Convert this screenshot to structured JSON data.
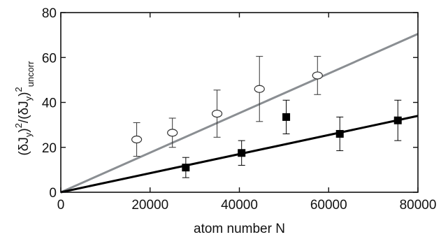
{
  "chart_data": {
    "type": "scatter",
    "xlabel": "atom number N",
    "ylabel": {
      "part1": "(δJ",
      "part2": "y",
      "part3": ")",
      "part4": "2",
      "part5": "/(δJ",
      "part6": "y",
      "part7": ")",
      "part8": "2",
      "part9": "uncorr"
    },
    "xlim": [
      0,
      80000
    ],
    "ylim": [
      0,
      80
    ],
    "x_ticks": [
      0,
      20000,
      40000,
      60000,
      80000
    ],
    "x_tick_labels": [
      "0",
      "20000",
      "40000",
      "60000",
      "80000"
    ],
    "y_ticks": [
      0,
      20,
      40,
      60,
      80
    ],
    "y_tick_labels": [
      "0",
      "20",
      "40",
      "60",
      "80"
    ],
    "grid": false,
    "series": [
      {
        "marker": "open-circle",
        "color": "#333333",
        "points": [
          {
            "x": 17000,
            "y": 23.5,
            "err": 7.5
          },
          {
            "x": 25000,
            "y": 26.5,
            "err": 6.5
          },
          {
            "x": 35000,
            "y": 35,
            "err": 10.5
          },
          {
            "x": 44500,
            "y": 46,
            "err": 14.5
          },
          {
            "x": 57500,
            "y": 52,
            "err": 8.5
          }
        ]
      },
      {
        "marker": "filled-square",
        "color": "#000000",
        "points": [
          {
            "x": 28000,
            "y": 11,
            "err": 4.5
          },
          {
            "x": 40500,
            "y": 17.5,
            "err": 5.5
          },
          {
            "x": 50500,
            "y": 33.5,
            "err": 7.5
          },
          {
            "x": 62500,
            "y": 26,
            "err": 7.5
          },
          {
            "x": 75500,
            "y": 32,
            "err": 9
          }
        ]
      }
    ],
    "fit_lines": [
      {
        "color": "#8a8e92",
        "x": [
          0,
          80000
        ],
        "y": [
          0,
          70.5
        ]
      },
      {
        "color": "#000000",
        "x": [
          0,
          80000
        ],
        "y": [
          0,
          34
        ]
      }
    ]
  }
}
